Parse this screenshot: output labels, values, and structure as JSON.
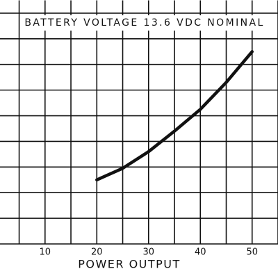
{
  "chart_data": {
    "type": "line",
    "title": "BATTERY VOLTAGE 13.6 VDC NOMINAL",
    "x_label": "POWER OUTPUT",
    "x": [
      20,
      25,
      30,
      35,
      40,
      45,
      50
    ],
    "series": [
      {
        "color": "#111111",
        "values": [
          2.5,
          2.95,
          3.6,
          4.4,
          5.25,
          6.3,
          7.5
        ]
      }
    ],
    "xlim": [
      1.3,
      55
    ],
    "xticks": [
      10,
      20,
      30,
      40,
      50
    ],
    "ylim": [
      0,
      9.5
    ],
    "grid": true,
    "x_grid_step": 5,
    "y_grid_step": 1
  }
}
